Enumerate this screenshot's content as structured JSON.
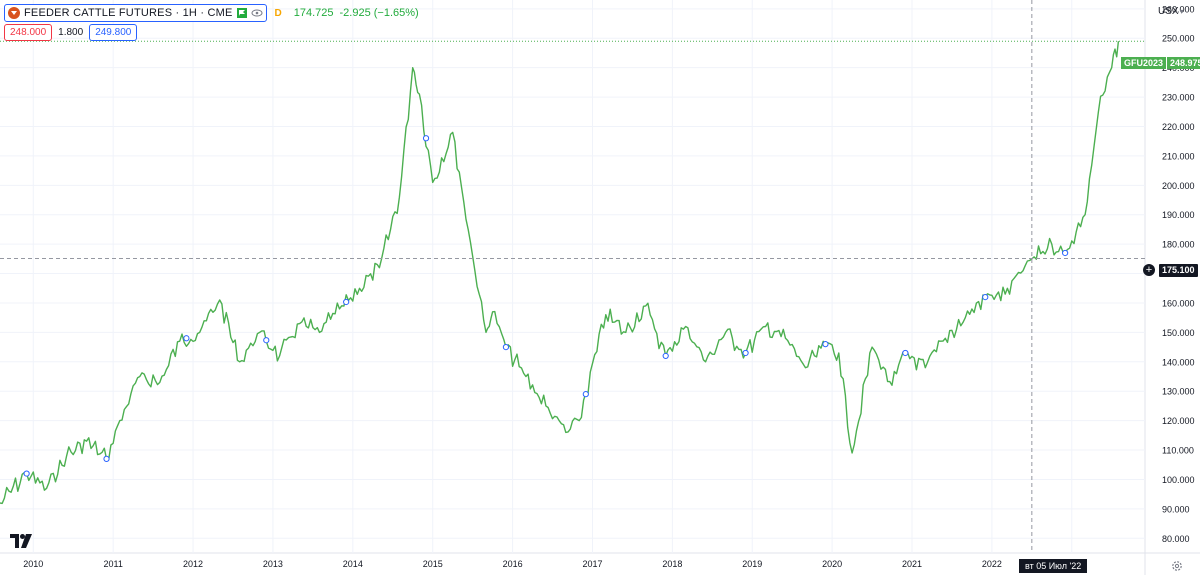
{
  "legend": {
    "symbol_title": "FEEDER CATTLE FUTURES · 1H · CME",
    "badge": "D",
    "last": "174.725",
    "change": "-2.925 (−1.65%)",
    "sell_price": "248.000",
    "spread": "1.800",
    "buy_price": "249.800",
    "icons": [
      "cattle-logo-icon",
      "flag-icon",
      "eye-icon"
    ]
  },
  "toolbar": {
    "currency": "USX"
  },
  "labels": {
    "last_symbol": "GFU2023",
    "last_price": "248.975",
    "crosshair_price": "175.100",
    "crosshair_date": "вт 05 Июл '22",
    "plus": "+"
  },
  "colors": {
    "line": "#4caf50",
    "last_label": "#4caf50",
    "sell": "#f23645",
    "buy": "#2962ff",
    "crosshair": "#9598a1"
  },
  "chart_data": {
    "type": "line",
    "series": [
      {
        "name": "",
        "x": [
          "2009-08",
          "2009-12",
          "2010-03",
          "2010-06",
          "2010-09",
          "2010-12",
          "2011-02",
          "2011-05",
          "2011-08",
          "2011-11",
          "2012-02",
          "2012-05",
          "2012-08",
          "2012-11",
          "2013-02",
          "2013-05",
          "2013-08",
          "2013-11",
          "2014-02",
          "2014-05",
          "2014-08",
          "2014-10",
          "2014-11",
          "2015-01",
          "2015-04",
          "2015-07",
          "2015-09",
          "2015-10",
          "2015-12",
          "2016-03",
          "2016-06",
          "2016-09",
          "2016-11",
          "2017-03",
          "2017-06",
          "2017-09",
          "2017-12",
          "2018-03",
          "2018-06",
          "2018-09",
          "2018-12",
          "2019-03",
          "2019-06",
          "2019-09",
          "2019-12",
          "2020-02",
          "2020-04",
          "2020-07",
          "2020-10",
          "2020-12",
          "2021-03",
          "2021-06",
          "2021-09",
          "2021-12",
          "2022-03",
          "2022-07",
          "2022-10",
          "2022-12",
          "2023-03",
          "2023-05",
          "2023-07",
          "2023-08"
        ],
        "values": [
          92,
          102,
          97,
          108,
          113,
          107,
          120,
          135,
          133,
          147,
          150,
          161,
          140,
          150,
          142,
          153,
          150,
          158,
          165,
          172,
          196,
          240,
          231,
          201,
          218,
          176,
          150,
          157,
          145,
          135,
          125,
          116,
          120,
          156,
          150,
          159,
          142,
          152,
          140,
          150,
          143,
          152,
          148,
          138,
          146,
          143,
          109,
          145,
          132,
          143,
          138,
          148,
          155,
          162,
          163,
          175,
          180,
          177,
          190,
          225,
          240,
          249
        ]
      }
    ],
    "x_ticks": [
      "2010",
      "2011",
      "2012",
      "2013",
      "2014",
      "2015",
      "2016",
      "2017",
      "2018",
      "2019",
      "2020",
      "2021",
      "2022",
      "2023"
    ],
    "y_ticks": [
      "80.000",
      "90.000",
      "100.000",
      "110.000",
      "120.000",
      "130.000",
      "140.000",
      "150.000",
      "160.000",
      "170.000",
      "180.000",
      "190.000",
      "200.000",
      "210.000",
      "220.000",
      "230.000",
      "240.000",
      "250.000",
      "260.000"
    ],
    "ylim": [
      75,
      263
    ],
    "xlim": [
      "2009-08",
      "2023-12"
    ],
    "y_axis_position": "right",
    "grid": true,
    "event_markers": [
      "2009-12",
      "2010-12",
      "2011-12",
      "2012-12",
      "2013-12",
      "2014-12",
      "2015-12",
      "2016-12",
      "2017-12",
      "2018-12",
      "2019-12",
      "2020-12",
      "2021-12",
      "2022-12"
    ],
    "crosshair": {
      "x": "2022-07",
      "y": 175.1
    },
    "last_value": 248.975
  }
}
